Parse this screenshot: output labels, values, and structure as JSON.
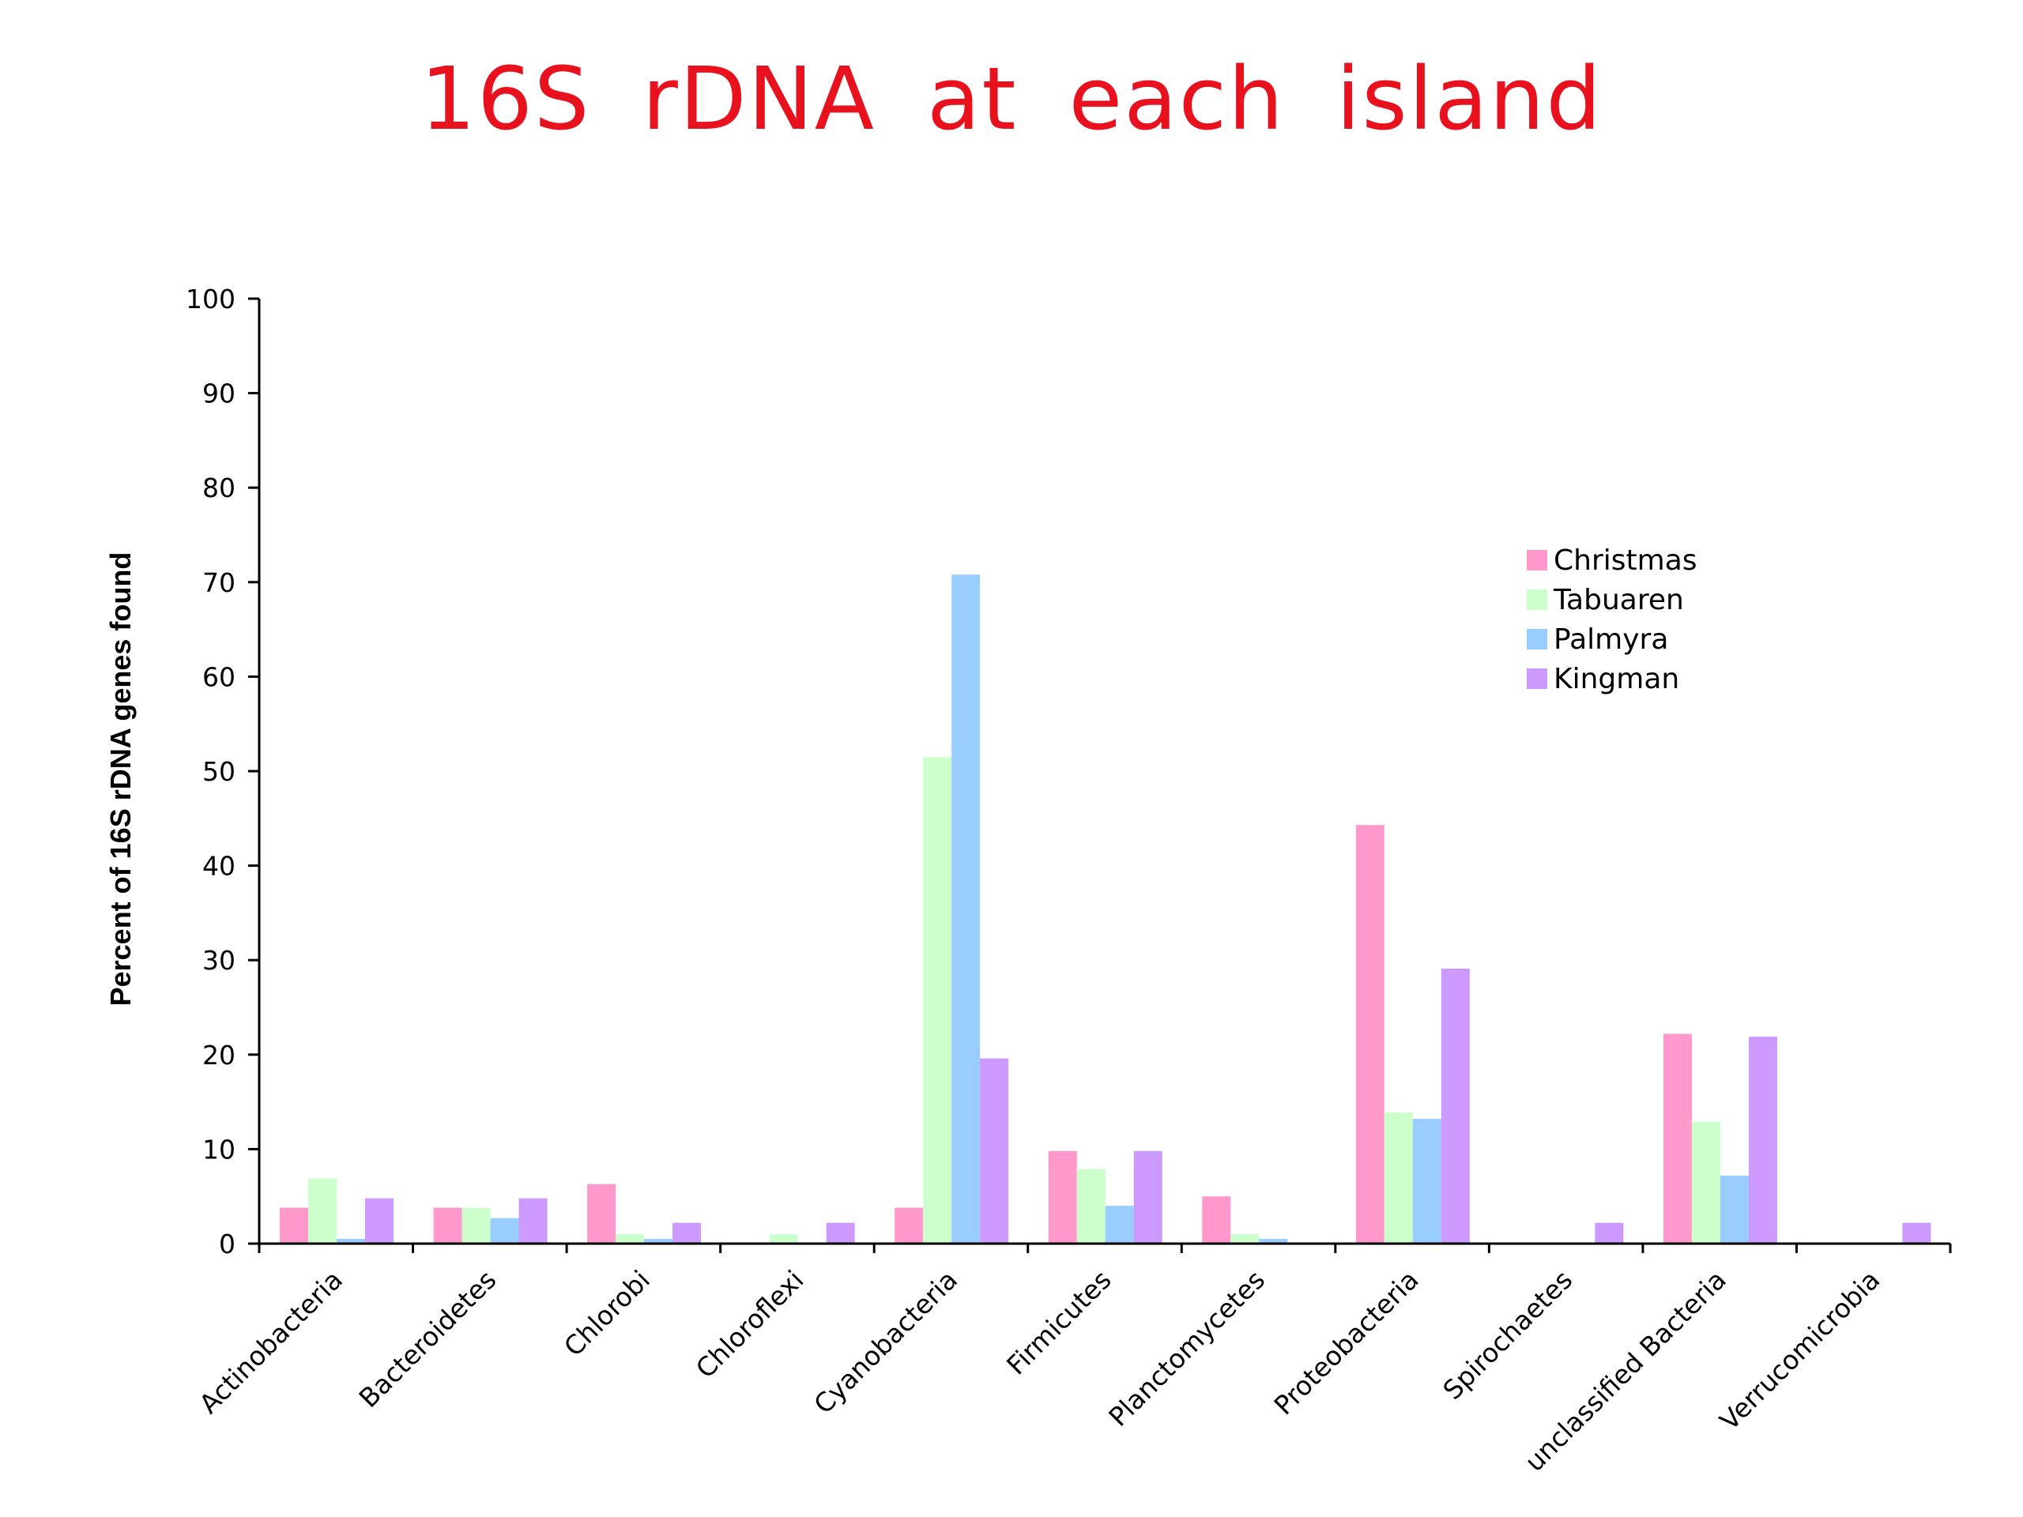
{
  "title": "16S rDNA at each island",
  "chart_data": {
    "type": "bar",
    "title": "16S rDNA at each island",
    "xlabel": "",
    "ylabel": "Percent of 16S rDNA genes found",
    "ylim": [
      0,
      100
    ],
    "yticks": [
      0,
      10,
      20,
      30,
      40,
      50,
      60,
      70,
      80,
      90,
      100
    ],
    "grid": false,
    "legend_position": "right",
    "categories": [
      "Actinobacteria",
      "Bacteroidetes",
      "Chlorobi",
      "Chloroflexi",
      "Cyanobacteria",
      "Firmicutes",
      "Planctomycetes",
      "Proteobacteria",
      "Spirochaetes",
      "unclassified Bacteria",
      "Verrucomicrobia"
    ],
    "series": [
      {
        "name": "Christmas",
        "color": "#ff99cc",
        "values": [
          3.8,
          3.8,
          6.3,
          0,
          3.8,
          9.8,
          5.0,
          44.3,
          0,
          22.2,
          0
        ]
      },
      {
        "name": "Tabuaren",
        "color": "#ccffcc",
        "values": [
          6.9,
          3.8,
          1.0,
          1.0,
          51.5,
          7.9,
          1.0,
          13.9,
          0,
          12.9,
          0
        ]
      },
      {
        "name": "Palmyra",
        "color": "#99ccff",
        "values": [
          0.5,
          2.7,
          0.5,
          0,
          70.8,
          4.0,
          0.5,
          13.2,
          0,
          7.2,
          0
        ]
      },
      {
        "name": "Kingman",
        "color": "#cc99ff",
        "values": [
          4.8,
          4.8,
          2.2,
          2.2,
          19.6,
          9.8,
          0,
          29.1,
          2.2,
          21.9,
          2.2
        ]
      }
    ]
  }
}
